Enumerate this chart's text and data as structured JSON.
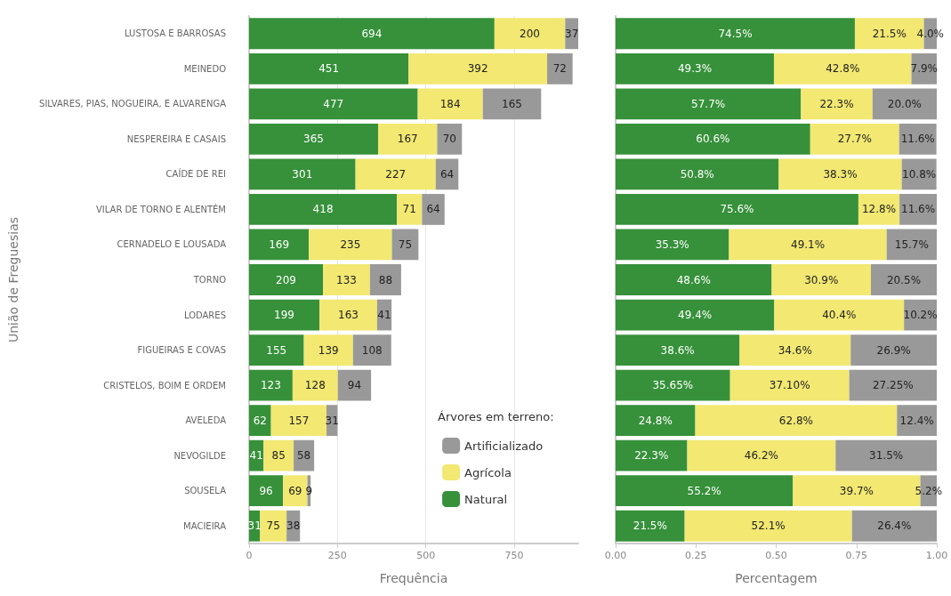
{
  "chart_data": [
    {
      "type": "bar",
      "orientation": "horizontal",
      "stacked": true,
      "xlabel": "Frequência",
      "ylabel": "União de Freguesias",
      "legend_title": "Árvores em terreno:",
      "legend": "bottom right",
      "grid": "x",
      "data_labels": true,
      "categories": [
        "LUSTOSA E BARROSAS",
        "MEINEDO",
        "SILVARES, PIAS, NOGUEIRA, E ALVARENGA",
        "NESPEREIRA E CASAIS",
        "CAÍDE DE REI",
        "VILAR DE TORNO E ALENTÉM",
        "CERNADELO E LOUSADA",
        "TORNO",
        "LODARES",
        "FIGUEIRAS E COVAS",
        "CRISTELOS, BOIM E ORDEM",
        "AVELEDA",
        "NEVOGILDE",
        "SOUSELA",
        "MACIEIRA"
      ],
      "xlim": [
        0,
        931
      ],
      "xticks": [
        0,
        250,
        500,
        750
      ],
      "series": [
        {
          "name": "Natural",
          "color": "#36913a",
          "values": [
            694,
            451,
            477,
            365,
            301,
            418,
            169,
            209,
            199,
            155,
            123,
            62,
            41,
            96,
            31
          ]
        },
        {
          "name": "Agrícola",
          "color": "#f2e872",
          "values": [
            200,
            392,
            184,
            167,
            227,
            71,
            235,
            133,
            163,
            139,
            128,
            157,
            85,
            69,
            75
          ]
        },
        {
          "name": "Artificializado",
          "color": "#999999",
          "values": [
            37,
            72,
            165,
            70,
            64,
            64,
            75,
            88,
            41,
            108,
            94,
            31,
            58,
            9,
            38
          ]
        }
      ]
    },
    {
      "type": "bar",
      "orientation": "horizontal",
      "stacked": true,
      "xlabel": "Percentagem",
      "tick_labels": "x",
      "categories": [
        null,
        null,
        null,
        null,
        null,
        null,
        null,
        null,
        null,
        null,
        null,
        null,
        null,
        null,
        null
      ],
      "xlim": [
        0,
        1
      ],
      "xticks": [
        {
          "value": 0,
          "label": "0.00"
        },
        {
          "value": 0.25,
          "label": "0.25"
        },
        {
          "value": 0.5,
          "label": "0.50"
        },
        {
          "value": 0.75,
          "label": "0.75"
        },
        {
          "value": 1,
          "label": "1.00"
        }
      ],
      "series": [
        {
          "color": "#36913a",
          "values": [
            0.745,
            0.493,
            0.577,
            0.606,
            0.508,
            0.756,
            0.353,
            0.486,
            0.494,
            0.386,
            0.3565,
            0.248,
            0.223,
            0.552,
            0.215
          ],
          "value_labels": [
            "74.5%",
            "49.3%",
            "57.7%",
            "60.6%",
            "50.8%",
            "75.6%",
            "35.3%",
            "48.6%",
            "49.4%",
            "38.6%",
            "35.65%",
            "24.8%",
            "22.3%",
            "55.2%",
            "21.5%"
          ]
        },
        {
          "color": "#f2e872",
          "values": [
            0.215,
            0.428,
            0.223,
            0.277,
            0.383,
            0.128,
            0.491,
            0.309,
            0.404,
            0.346,
            0.371,
            0.628,
            0.462,
            0.397,
            0.521
          ],
          "value_labels": [
            "21.5%",
            "42.8%",
            "22.3%",
            "27.7%",
            "38.3%",
            "12.8%",
            "49.1%",
            "30.9%",
            "40.4%",
            "34.6%",
            "37.10%",
            "62.8%",
            "46.2%",
            "39.7%",
            "52.1%"
          ]
        },
        {
          "color": "#999999",
          "values": [
            0.04,
            0.079,
            0.2,
            0.116,
            0.108,
            0.116,
            0.157,
            0.205,
            0.102,
            0.269,
            0.2725,
            0.124,
            0.315,
            0.052,
            0.264
          ],
          "value_labels": [
            "4.0%",
            "7.9%",
            "20.0%",
            "11.6%",
            "10.8%",
            "11.6%",
            "15.7%",
            "20.5%",
            "10.2%",
            "26.9%",
            "27.25%",
            "12.4%",
            "31.5%",
            "5.2%",
            "26.4%"
          ]
        }
      ]
    }
  ]
}
